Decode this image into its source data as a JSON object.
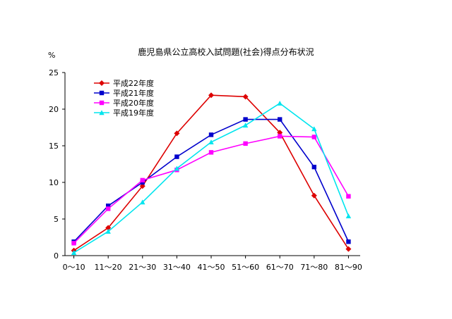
{
  "chart_data": {
    "type": "line",
    "title": "鹿児島県公立高校入試問題(社会)得点分布状況",
    "ylabel": "%",
    "xlabel": "",
    "ylim": [
      0,
      25
    ],
    "yticks": [
      0,
      5,
      10,
      15,
      20,
      25
    ],
    "grid": "none",
    "legend_position": "top-left",
    "categories": [
      "0～10",
      "11～20",
      "21～30",
      "31～40",
      "41～50",
      "51～60",
      "61～70",
      "71～80",
      "81～90"
    ],
    "series": [
      {
        "name": "平成22年度",
        "color": "#dd0000",
        "marker": "diamond",
        "values": [
          0.7,
          3.8,
          9.5,
          16.7,
          21.9,
          21.7,
          16.8,
          8.2,
          0.9
        ]
      },
      {
        "name": "平成21年度",
        "color": "#0000cc",
        "marker": "square",
        "values": [
          1.9,
          6.8,
          10.0,
          13.5,
          16.5,
          18.6,
          18.6,
          12.1,
          1.9
        ]
      },
      {
        "name": "平成20年度",
        "color": "#ff00ff",
        "marker": "square",
        "values": [
          1.7,
          6.4,
          10.3,
          11.7,
          14.1,
          15.3,
          16.3,
          16.2,
          8.1
        ]
      },
      {
        "name": "平成19年度",
        "color": "#00e5ee",
        "marker": "triangle",
        "values": [
          0.4,
          3.3,
          7.3,
          11.9,
          15.5,
          17.8,
          20.8,
          17.3,
          5.4
        ]
      }
    ]
  }
}
